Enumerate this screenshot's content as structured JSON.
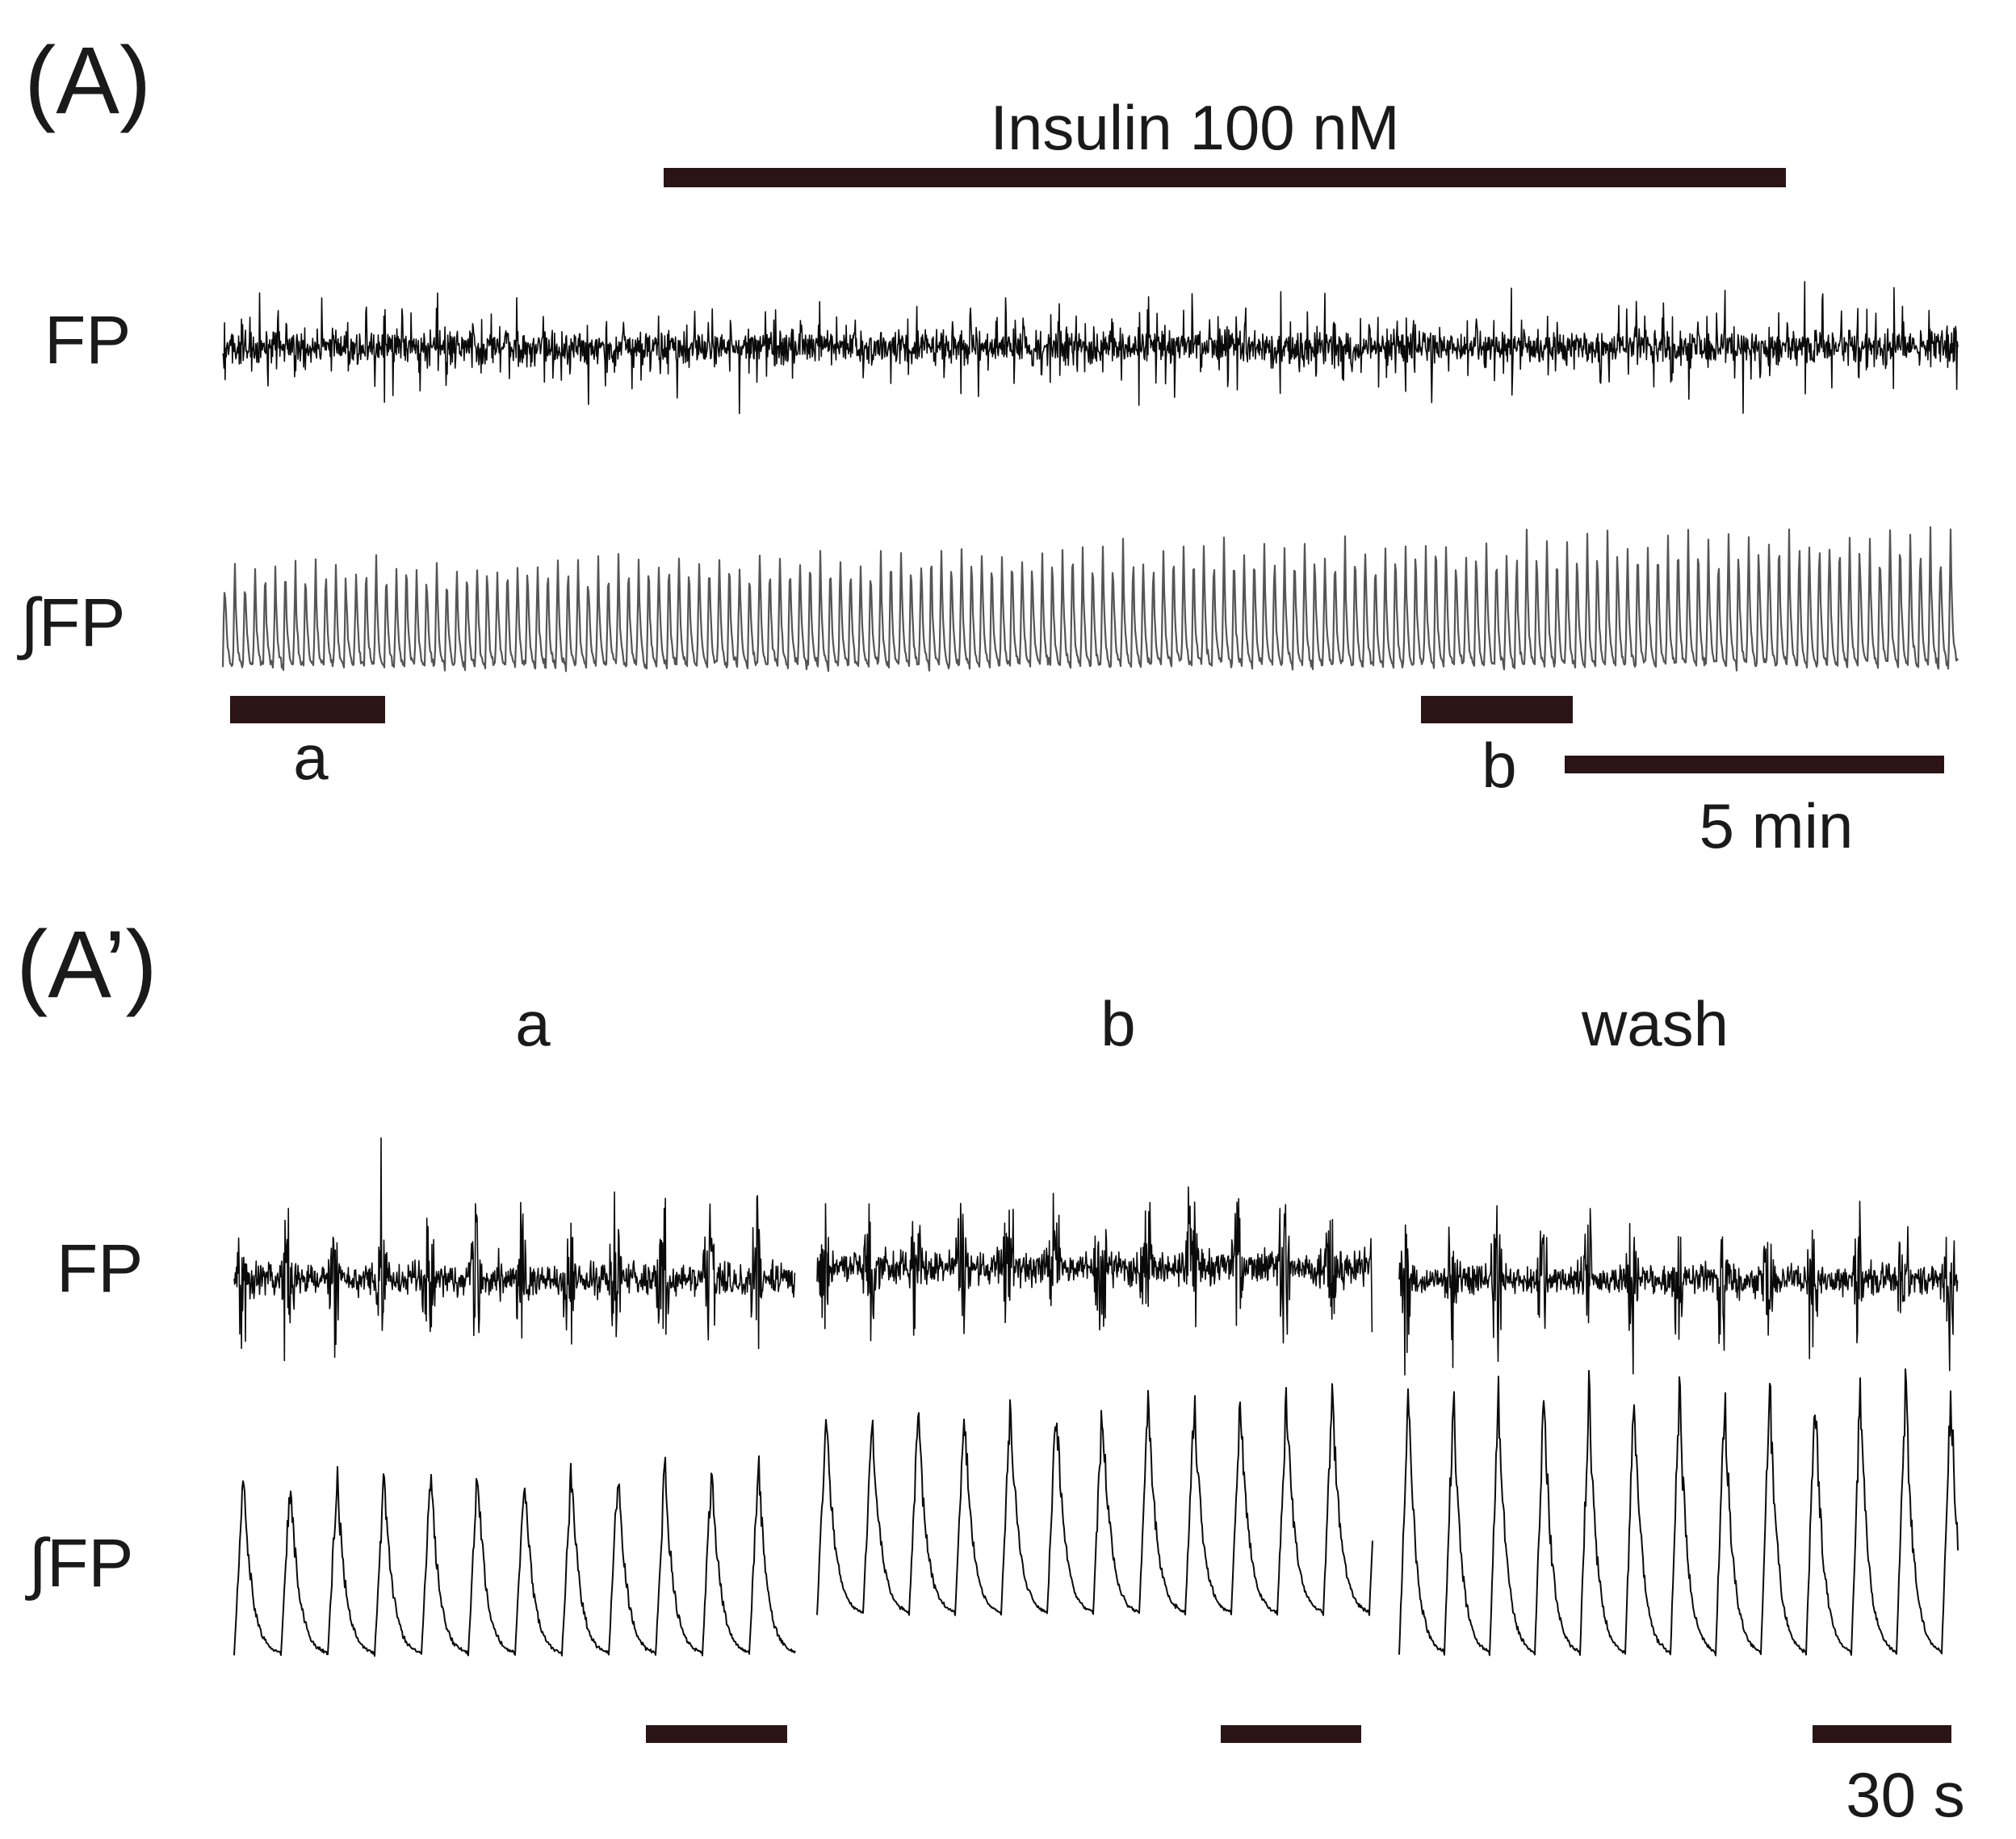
{
  "panel_a": {
    "label": "(A)",
    "drug_label": "Insulin 100 nM",
    "fp_label": "FP",
    "int_fp_label": "∫FP",
    "segment_a_label": "a",
    "segment_b_label": "b",
    "scale_label": "5 min"
  },
  "panel_a_prime": {
    "label": "(A’)",
    "col_a_label": "a",
    "col_b_label": "b",
    "col_wash_label": "wash",
    "fp_label": "FP",
    "int_fp_label": "∫FP",
    "scale_label": "30 s"
  },
  "colors": {
    "trace": "#0a0a0a",
    "integrated_trace": "#555555",
    "bars": "#2a1416"
  }
}
